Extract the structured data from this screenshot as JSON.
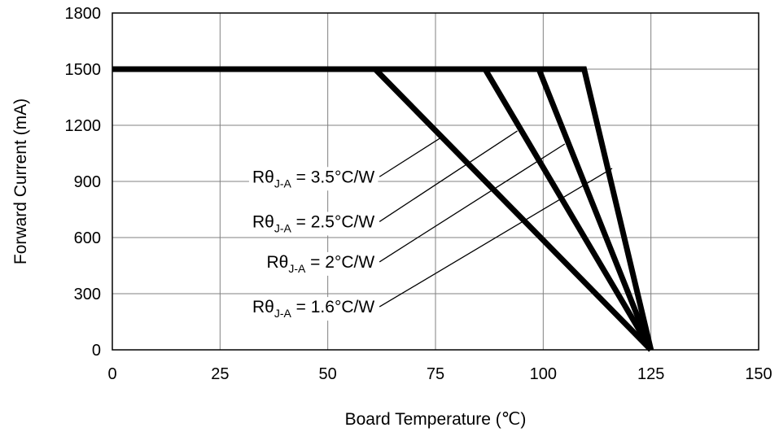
{
  "chart_data": {
    "type": "line",
    "title": "",
    "xlabel": "Board Temperature (℃)",
    "ylabel": "Forward Current (mA)",
    "xlim": [
      0,
      150
    ],
    "ylim": [
      0,
      1800
    ],
    "xticks": [
      0,
      25,
      50,
      75,
      100,
      125,
      150
    ],
    "yticks": [
      0,
      300,
      600,
      900,
      1200,
      1500,
      1800
    ],
    "grid": true,
    "legend": "none",
    "series": [
      {
        "key": "r35",
        "points": [
          [
            0,
            1500
          ],
          [
            61,
            1500
          ],
          [
            125,
            0
          ]
        ]
      },
      {
        "key": "r25",
        "points": [
          [
            0,
            1500
          ],
          [
            86.5,
            1500
          ],
          [
            125,
            0
          ]
        ]
      },
      {
        "key": "r2",
        "points": [
          [
            0,
            1500
          ],
          [
            99,
            1500
          ],
          [
            125,
            0
          ]
        ]
      },
      {
        "key": "r16",
        "points": [
          [
            0,
            1500
          ],
          [
            109.5,
            1500
          ],
          [
            125,
            0
          ]
        ]
      }
    ],
    "annotations": [
      {
        "series": "r35",
        "prefix": "Rθ",
        "subscript": "J-A",
        "suffix": " = 3.5°C/W",
        "leader_from": [
          62,
          925
        ],
        "leader_to": [
          76,
          1130
        ]
      },
      {
        "series": "r25",
        "prefix": "Rθ",
        "subscript": "J-A",
        "suffix": " = 2.5°C/W",
        "leader_from": [
          62,
          685
        ],
        "leader_to": [
          94,
          1170
        ]
      },
      {
        "series": "r2",
        "prefix": "Rθ",
        "subscript": "J-A",
        "suffix": " = 2°C/W",
        "leader_from": [
          62,
          470
        ],
        "leader_to": [
          105,
          1100
        ]
      },
      {
        "series": "r16",
        "prefix": "Rθ",
        "subscript": "J-A",
        "suffix": " = 1.6°C/W",
        "leader_from": [
          62,
          230
        ],
        "leader_to": [
          116,
          970
        ]
      }
    ]
  }
}
